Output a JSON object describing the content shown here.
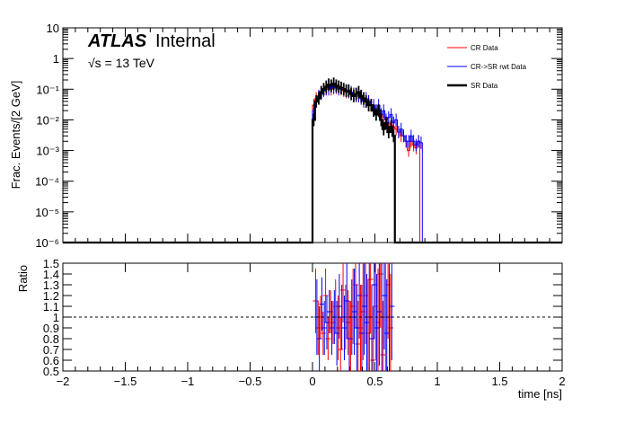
{
  "chart_data": [
    {
      "type": "histogram",
      "title": "",
      "experiment_label": "ATLAS",
      "status_label": "Internal",
      "energy_label": "√s = 13 TeV",
      "xlabel": "",
      "ylabel": "Frac. Events/[2 GeV]",
      "xlim": [
        -2,
        2
      ],
      "ylim": [
        1e-06,
        10
      ],
      "yscale": "log",
      "y_ticks": [
        "10⁻⁶",
        "10⁻⁵",
        "10⁻⁴",
        "10⁻³",
        "10⁻²",
        "10⁻¹",
        "1",
        "10"
      ],
      "legend_position": "top-right",
      "bin_edges": [
        0.0,
        0.02,
        0.04,
        0.06,
        0.08,
        0.1,
        0.12,
        0.14,
        0.16,
        0.18,
        0.2,
        0.22,
        0.24,
        0.26,
        0.28,
        0.3,
        0.32,
        0.34,
        0.36,
        0.38,
        0.4,
        0.42,
        0.44,
        0.46,
        0.48,
        0.5,
        0.52,
        0.54,
        0.56,
        0.58,
        0.6,
        0.62,
        0.64,
        0.66,
        0.68,
        0.7,
        0.72,
        0.74,
        0.76,
        0.78,
        0.8,
        0.82,
        0.84,
        0.86,
        0.88,
        0.9
      ],
      "series": [
        {
          "name": "CR Data",
          "color": "#ff0000",
          "style": "thin",
          "values": [
            0.03,
            0.05,
            0.06,
            0.08,
            0.09,
            0.1,
            0.11,
            0.1,
            0.12,
            0.11,
            0.12,
            0.1,
            0.09,
            0.08,
            0.08,
            0.07,
            0.07,
            0.06,
            0.06,
            0.05,
            0.05,
            0.04,
            0.04,
            0.03,
            0.025,
            0.02,
            0.02,
            0.015,
            0.012,
            0.01,
            0.008,
            0.007,
            0.006,
            0.005,
            0.004,
            0.003,
            0.003,
            0.002,
            0.001,
            0.002,
            0.0015,
            0.0012,
            0.002,
            1e-06,
            1e-06
          ]
        },
        {
          "name": "CR->SR rwt Data",
          "color": "#0000ff",
          "style": "thin",
          "values": [
            0.02,
            0.04,
            0.06,
            0.07,
            0.09,
            0.1,
            0.1,
            0.12,
            0.11,
            0.12,
            0.1,
            0.11,
            0.1,
            0.09,
            0.08,
            0.08,
            0.07,
            0.06,
            0.06,
            0.05,
            0.04,
            0.05,
            0.04,
            0.03,
            0.03,
            0.02,
            0.03,
            0.015,
            0.02,
            0.01,
            0.012,
            0.015,
            0.008,
            0.01,
            0.004,
            0.005,
            0.003,
            0.002,
            0.002,
            0.003,
            0.002,
            0.0015,
            0.002,
            0.0018,
            1e-06
          ]
        },
        {
          "name": "SR Data",
          "color": "#000000",
          "style": "thick",
          "values": [
            0.01,
            0.04,
            0.05,
            0.08,
            0.1,
            0.12,
            0.14,
            0.13,
            0.15,
            0.13,
            0.12,
            0.11,
            0.1,
            0.09,
            0.09,
            0.07,
            0.06,
            0.07,
            0.08,
            0.06,
            0.05,
            0.04,
            0.03,
            0.03,
            0.02,
            0.015,
            0.02,
            0.01,
            0.005,
            0.008,
            0.004,
            0.006,
            0.003,
            1e-06,
            1e-06,
            1e-06,
            1e-06,
            1e-06,
            1e-06,
            1e-06,
            1e-06,
            1e-06,
            1e-06,
            1e-06,
            1e-06
          ]
        }
      ]
    },
    {
      "type": "ratio",
      "xlabel": "time [ns]",
      "ylabel": "Ratio",
      "xlim": [
        -2,
        2
      ],
      "ylim": [
        0.5,
        1.5
      ],
      "y_ticks": [
        "0.5",
        "0.6",
        "0.7",
        "0.8",
        "0.9",
        "1",
        "1.1",
        "1.2",
        "1.3",
        "1.4",
        "1.5"
      ],
      "x_ticks": [
        "−2",
        "−1.5",
        "−1",
        "−0.5",
        "0",
        "0.5",
        "1",
        "1.5",
        "2"
      ],
      "reference_line": 1,
      "points": {
        "x": [
          0.03,
          0.05,
          0.07,
          0.09,
          0.11,
          0.13,
          0.15,
          0.17,
          0.19,
          0.21,
          0.23,
          0.25,
          0.27,
          0.29,
          0.31,
          0.33,
          0.35,
          0.37,
          0.39,
          0.41,
          0.43,
          0.45,
          0.47,
          0.49,
          0.51,
          0.53,
          0.55,
          0.57,
          0.59,
          0.61,
          0.63
        ],
        "red": [
          1.15,
          0.9,
          1.0,
          0.85,
          1.2,
          0.8,
          1.05,
          0.95,
          1.1,
          0.9,
          0.7,
          1.25,
          1.0,
          0.95,
          0.8,
          1.1,
          1.3,
          0.75,
          0.9,
          1.05,
          1.2,
          0.85,
          1.35,
          0.6,
          1.1,
          0.95,
          1.4,
          0.65,
          1.0,
          1.3,
          0.9
        ],
        "red_err": [
          0.3,
          0.25,
          0.2,
          0.2,
          0.25,
          0.2,
          0.2,
          0.2,
          0.25,
          0.3,
          0.3,
          0.3,
          0.3,
          0.3,
          0.35,
          0.35,
          0.4,
          0.4,
          0.4,
          0.45,
          0.45,
          0.5,
          0.5,
          0.5,
          0.5,
          0.5,
          0.5,
          0.5,
          0.5,
          0.5,
          0.5
        ],
        "blue": [
          1.0,
          0.8,
          1.12,
          0.9,
          0.95,
          1.05,
          0.9,
          1.0,
          0.85,
          1.1,
          1.0,
          0.9,
          1.15,
          0.8,
          1.0,
          1.05,
          0.9,
          1.2,
          0.85,
          1.1,
          0.95,
          1.0,
          0.8,
          1.3,
          0.9,
          1.05,
          1.0,
          1.2,
          0.85,
          1.0,
          1.1
        ],
        "blue_err": [
          0.35,
          0.3,
          0.25,
          0.25,
          0.25,
          0.2,
          0.25,
          0.25,
          0.3,
          0.3,
          0.3,
          0.3,
          0.35,
          0.35,
          0.35,
          0.4,
          0.4,
          0.4,
          0.45,
          0.45,
          0.45,
          0.5,
          0.5,
          0.5,
          0.5,
          0.5,
          0.5,
          0.5,
          0.5,
          0.5,
          0.5
        ]
      }
    }
  ]
}
